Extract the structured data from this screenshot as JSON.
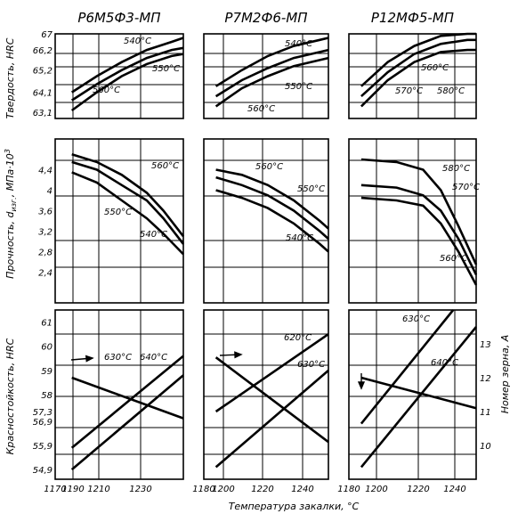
{
  "chart_data": {
    "type": "line",
    "x_axis": {
      "label": "Температура закалки, °C",
      "panel_ticks": [
        [
          1170,
          1190,
          1210,
          1230
        ],
        [
          1180,
          1200,
          1220,
          1240
        ],
        [
          1180,
          1200,
          1220,
          1240
        ]
      ]
    },
    "panels": [
      {
        "column": 0,
        "row": 0,
        "title": "Р6М5Ф3-МП",
        "ylabel": "Твердость, HRC",
        "yticks": [
          63.1,
          64.1,
          65.2,
          66.2,
          67.0
        ],
        "series": [
          {
            "name": "540°C",
            "x": [
              1170,
              1185,
              1200,
              1215,
              1230,
              1237
            ],
            "y": [
              64.1,
              64.9,
              65.6,
              66.2,
              66.6,
              66.8
            ]
          },
          {
            "name": "550°C",
            "x": [
              1170,
              1185,
              1200,
              1215,
              1230,
              1237
            ],
            "y": [
              63.7,
              64.5,
              65.2,
              65.8,
              66.2,
              66.3
            ]
          },
          {
            "name": "560°C",
            "x": [
              1170,
              1185,
              1200,
              1215,
              1230,
              1237
            ],
            "y": [
              63.2,
              64.1,
              64.9,
              65.5,
              65.9,
              66.0
            ]
          }
        ],
        "annotations": [
          "540°C",
          "550°C",
          "560°C"
        ]
      },
      {
        "column": 1,
        "row": 0,
        "title": "Р7М2Ф6-МП",
        "yticks": [],
        "series": [
          {
            "name": "540°C",
            "x": [
              1180,
              1195,
              1210,
              1225,
              1240,
              1245
            ],
            "y": [
              64.4,
              65.2,
              65.9,
              66.4,
              66.7,
              66.8
            ]
          },
          {
            "name": "550°C",
            "x": [
              1180,
              1195,
              1210,
              1225,
              1240,
              1245
            ],
            "y": [
              63.9,
              64.7,
              65.3,
              65.8,
              66.1,
              66.2
            ]
          },
          {
            "name": "560°C",
            "x": [
              1180,
              1195,
              1210,
              1225,
              1240,
              1245
            ],
            "y": [
              63.4,
              64.3,
              64.9,
              65.4,
              65.7,
              65.8
            ]
          }
        ],
        "annotations": [
          "540°C",
          "550°C",
          "560°C"
        ]
      },
      {
        "column": 2,
        "row": 0,
        "title": "Р12МФ5-МП",
        "yticks": [],
        "series": [
          {
            "name": "560°C",
            "x": [
              1180,
              1195,
              1210,
              1225,
              1240,
              1245
            ],
            "y": [
              64.4,
              65.6,
              66.4,
              66.9,
              67.0,
              67.0
            ]
          },
          {
            "name": "570°C",
            "x": [
              1180,
              1195,
              1210,
              1225,
              1240,
              1245
            ],
            "y": [
              63.9,
              65.1,
              66.0,
              66.5,
              66.7,
              66.7
            ]
          },
          {
            "name": "580°C",
            "x": [
              1180,
              1195,
              1210,
              1225,
              1240,
              1245
            ],
            "y": [
              63.4,
              64.7,
              65.6,
              66.1,
              66.2,
              66.2
            ]
          }
        ],
        "annotations": [
          "560°C",
          "570°C",
          "580°C"
        ]
      },
      {
        "column": 0,
        "row": 1,
        "ylabel": "Прочность, σизг, МПа·10³",
        "ylabel_parts": [
          "Прочность, ",
          "d",
          "изг.",
          ", МПа·10",
          "3"
        ],
        "yticks": [
          2.4,
          2.8,
          3.2,
          3.6,
          4.0,
          4.4
        ],
        "series": [
          {
            "name": "560°C",
            "x": [
              1170,
              1185,
              1200,
              1215,
              1225,
              1237
            ],
            "y": [
              4.7,
              4.55,
              4.3,
              3.95,
              3.6,
              3.1
            ]
          },
          {
            "name": "550°C",
            "x": [
              1170,
              1185,
              1200,
              1215,
              1225,
              1237
            ],
            "y": [
              4.55,
              4.4,
              4.1,
              3.8,
              3.45,
              2.95
            ]
          },
          {
            "name": "540°C",
            "x": [
              1170,
              1185,
              1200,
              1215,
              1225,
              1237
            ],
            "y": [
              4.35,
              4.15,
              3.8,
              3.45,
              3.15,
              2.75
            ]
          }
        ],
        "annotations": [
          "560°C",
          "550°C",
          "540°C"
        ]
      },
      {
        "column": 1,
        "row": 1,
        "yticks": [],
        "series": [
          {
            "name": "560°C",
            "x": [
              1180,
              1195,
              1210,
              1225,
              1240,
              1245
            ],
            "y": [
              4.4,
              4.3,
              4.1,
              3.8,
              3.4,
              3.25
            ]
          },
          {
            "name": "550°C",
            "x": [
              1180,
              1195,
              1210,
              1225,
              1240,
              1245
            ],
            "y": [
              4.25,
              4.1,
              3.9,
              3.6,
              3.2,
              3.05
            ]
          },
          {
            "name": "540°C",
            "x": [
              1180,
              1195,
              1210,
              1225,
              1240,
              1245
            ],
            "y": [
              4.0,
              3.85,
              3.65,
              3.35,
              2.95,
              2.8
            ]
          }
        ],
        "annotations": [
          "560°C",
          "550°C",
          "540°C"
        ]
      },
      {
        "column": 2,
        "row": 1,
        "yticks": [],
        "series": [
          {
            "name": "580°C",
            "x": [
              1180,
              1200,
              1215,
              1225,
              1235,
              1245
            ],
            "y": [
              4.6,
              4.55,
              4.4,
              4.0,
              3.3,
              2.55
            ]
          },
          {
            "name": "570°C",
            "x": [
              1180,
              1200,
              1215,
              1225,
              1235,
              1245
            ],
            "y": [
              4.1,
              4.05,
              3.9,
              3.6,
              3.05,
              2.35
            ]
          },
          {
            "name": "560°C",
            "x": [
              1180,
              1200,
              1215,
              1225,
              1235,
              1245
            ],
            "y": [
              3.85,
              3.8,
              3.7,
              3.35,
              2.8,
              2.15
            ]
          }
        ],
        "annotations": [
          "580°C",
          "570°C",
          "560°C"
        ]
      },
      {
        "column": 0,
        "row": 2,
        "ylabel": "Красностойкость, HRC",
        "yticks": [
          54.9,
          55.9,
          56.9,
          57.3,
          58.0,
          59.0,
          60.0,
          61.0
        ],
        "series": [
          {
            "name": "630°C",
            "x": [
              1170,
              1237
            ],
            "y": [
              55.8,
              59.6
            ]
          },
          {
            "name": "640°C",
            "x": [
              1170,
              1237
            ],
            "y": [
              54.9,
              58.8
            ]
          }
        ],
        "grain_size_line": {
          "x": [
            1170,
            1237
          ],
          "y": [
            12.0,
            10.8
          ]
        },
        "annotations": [
          "630°C",
          "640°C"
        ]
      },
      {
        "column": 1,
        "row": 2,
        "yticks": [],
        "series": [
          {
            "name": "620°C",
            "x": [
              1180,
              1245
            ],
            "y": [
              57.3,
              60.5
            ]
          },
          {
            "name": "630°C",
            "x": [
              1180,
              1245
            ],
            "y": [
              55.0,
              59.0
            ]
          }
        ],
        "grain_size_line": {
          "x": [
            1180,
            1245
          ],
          "y": [
            12.6,
            10.1
          ]
        },
        "annotations": [
          "620°C",
          "630°C"
        ]
      },
      {
        "column": 2,
        "row": 2,
        "y2label": "Номер зерна, А",
        "y2ticks": [
          10,
          11,
          12,
          13
        ],
        "series": [
          {
            "name": "630°C",
            "x": [
              1180,
              1232
            ],
            "y": [
              56.8,
              61.5
            ]
          },
          {
            "name": "640°C",
            "x": [
              1180,
              1245
            ],
            "y": [
              55.0,
              60.8
            ]
          }
        ],
        "grain_size_line": {
          "x": [
            1180,
            1245
          ],
          "y": [
            12.0,
            11.1
          ]
        },
        "annotations": [
          "630°C",
          "640°C"
        ]
      }
    ]
  }
}
